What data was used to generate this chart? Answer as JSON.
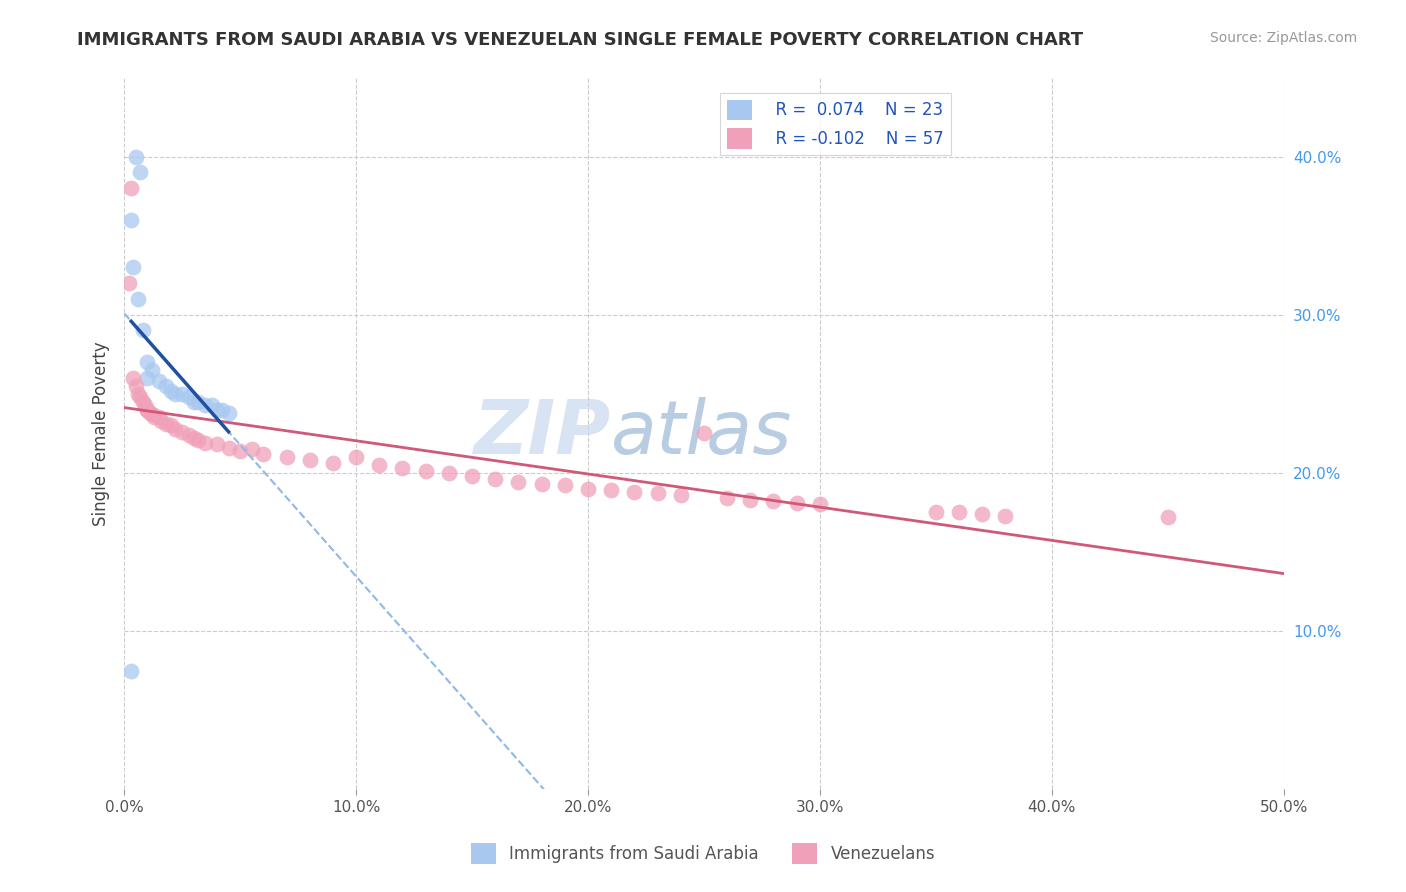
{
  "title": "IMMIGRANTS FROM SAUDI ARABIA VS VENEZUELAN SINGLE FEMALE POVERTY CORRELATION CHART",
  "source": "Source: ZipAtlas.com",
  "ylabel": "Single Female Poverty",
  "xlim": [
    0.0,
    0.5
  ],
  "ylim": [
    0.0,
    0.45
  ],
  "xticks": [
    0.0,
    0.1,
    0.2,
    0.3,
    0.4,
    0.5
  ],
  "yticks_right": [
    0.1,
    0.2,
    0.3,
    0.4
  ],
  "legend_r1": "R =  0.074",
  "legend_n1": "N = 23",
  "legend_r2": "R = -0.102",
  "legend_n2": "N = 57",
  "color_blue": "#A8C8F0",
  "color_pink": "#F0A0B8",
  "color_blue_line": "#2050A0",
  "color_blue_dashed": "#90B8E8",
  "color_pink_line": "#D05878",
  "color_grid": "#CCCCCC",
  "watermark_zip": "ZIP",
  "watermark_atlas": "atlas",
  "saudi_x": [
    0.005,
    0.007,
    0.003,
    0.004,
    0.006,
    0.008,
    0.01,
    0.012,
    0.01,
    0.015,
    0.018,
    0.02,
    0.022,
    0.025,
    0.028,
    0.03,
    0.032,
    0.035,
    0.038,
    0.04,
    0.042,
    0.045,
    0.003
  ],
  "saudi_y": [
    0.4,
    0.39,
    0.36,
    0.33,
    0.31,
    0.29,
    0.27,
    0.265,
    0.26,
    0.258,
    0.255,
    0.252,
    0.25,
    0.25,
    0.248,
    0.245,
    0.245,
    0.243,
    0.243,
    0.24,
    0.24,
    0.238,
    0.075
  ],
  "venezuela_x": [
    0.002,
    0.003,
    0.004,
    0.005,
    0.006,
    0.007,
    0.008,
    0.009,
    0.01,
    0.01,
    0.011,
    0.012,
    0.013,
    0.015,
    0.016,
    0.018,
    0.02,
    0.022,
    0.025,
    0.028,
    0.03,
    0.032,
    0.035,
    0.04,
    0.045,
    0.05,
    0.055,
    0.06,
    0.07,
    0.08,
    0.09,
    0.1,
    0.11,
    0.12,
    0.13,
    0.14,
    0.15,
    0.16,
    0.17,
    0.18,
    0.19,
    0.2,
    0.21,
    0.22,
    0.23,
    0.24,
    0.25,
    0.26,
    0.27,
    0.28,
    0.29,
    0.3,
    0.35,
    0.36,
    0.37,
    0.38,
    0.45
  ],
  "venezuela_y": [
    0.32,
    0.38,
    0.26,
    0.255,
    0.25,
    0.248,
    0.245,
    0.243,
    0.24,
    0.24,
    0.238,
    0.237,
    0.235,
    0.235,
    0.233,
    0.231,
    0.23,
    0.228,
    0.226,
    0.224,
    0.222,
    0.221,
    0.219,
    0.218,
    0.216,
    0.214,
    0.215,
    0.212,
    0.21,
    0.208,
    0.206,
    0.21,
    0.205,
    0.203,
    0.201,
    0.2,
    0.198,
    0.196,
    0.194,
    0.193,
    0.192,
    0.19,
    0.189,
    0.188,
    0.187,
    0.186,
    0.225,
    0.184,
    0.183,
    0.182,
    0.181,
    0.18,
    0.175,
    0.175,
    0.174,
    0.173,
    0.172
  ]
}
